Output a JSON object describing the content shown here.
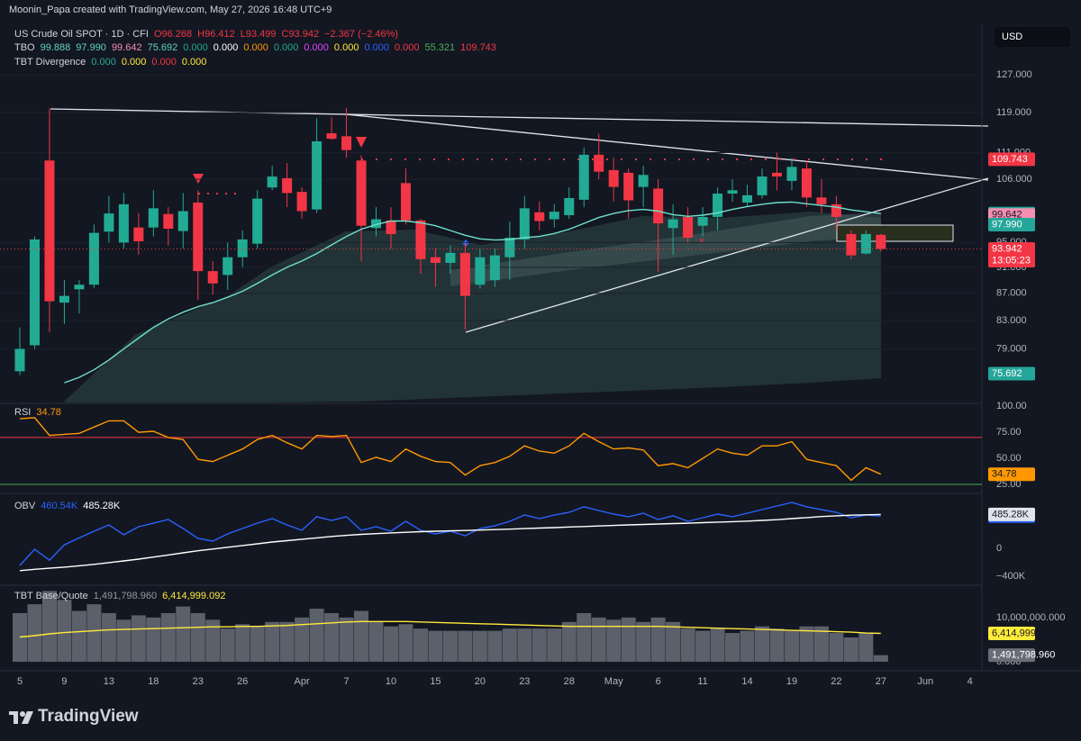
{
  "credit": "Moonin_Papa created with TradingView.com, May 27, 2026 16:48 UTC+9",
  "currency": "USD",
  "brand": "TradingView",
  "chart_data": [
    {
      "type": "candlestick",
      "title": "US Crude Oil SPOT · 1D · CFI",
      "log": true,
      "grid": true,
      "legend_values": [
        "O96.268",
        "H96.412",
        "L93.499",
        "C93.942",
        "−2.367 (−2.46%)"
      ],
      "indicators": [
        {
          "name": "TBO",
          "values": [
            {
              "text": "99.888",
              "color": "#5fd3c2"
            },
            {
              "text": "97.990",
              "color": "#5fd3c2"
            },
            {
              "text": "99.642",
              "color": "#f48fb1"
            },
            {
              "text": "75.692",
              "color": "#5fd3c2"
            },
            {
              "text": "0.000",
              "color": "#22ab94"
            },
            {
              "text": "0.000",
              "color": "#ffffff"
            },
            {
              "text": "0.000",
              "color": "#ff9800"
            },
            {
              "text": "0.000",
              "color": "#22ab94"
            },
            {
              "text": "0.000",
              "color": "#e040fb"
            },
            {
              "text": "0.000",
              "color": "#ffeb3b"
            },
            {
              "text": "0.000",
              "color": "#2962ff"
            },
            {
              "text": "0.000",
              "color": "#f23645"
            },
            {
              "text": "55.321",
              "color": "#4caf50"
            },
            {
              "text": "109.743",
              "color": "#f23645"
            }
          ]
        },
        {
          "name": "TBT Divergence",
          "values": [
            {
              "text": "0.000",
              "color": "#22ab94"
            },
            {
              "text": "0.000",
              "color": "#ffeb3b"
            },
            {
              "text": "0.000",
              "color": "#f23645"
            },
            {
              "text": "0.000",
              "color": "#ffeb3b"
            }
          ]
        }
      ],
      "categories": [
        "5",
        null,
        null,
        "9",
        null,
        null,
        "13",
        null,
        null,
        "18",
        null,
        null,
        "23",
        null,
        null,
        "26",
        null,
        null,
        null,
        "Apr",
        null,
        null,
        "7",
        null,
        null,
        "10",
        null,
        null,
        "15",
        null,
        null,
        "20",
        null,
        null,
        "23",
        null,
        null,
        "28",
        null,
        null,
        "May",
        null,
        null,
        "6",
        null,
        null,
        "11",
        null,
        null,
        "14",
        null,
        null,
        "19",
        null,
        null,
        "22",
        null,
        null,
        "27",
        null,
        null,
        "Jun",
        null,
        null,
        "4"
      ],
      "open": [
        76,
        79.5,
        109.5,
        85.6,
        87.6,
        88.3,
        96.8,
        95,
        97.5,
        97.5,
        99.8,
        96.9,
        101.8,
        90.4,
        89.8,
        92.6,
        94.8,
        104.5,
        106.2,
        103.7,
        100.6,
        114.8,
        114.2,
        109.5,
        97.4,
        98.7,
        105.3,
        98.7,
        92.6,
        91.7,
        93.3,
        88.3,
        89.0,
        92.6,
        95.5,
        100.1,
        98.9,
        99.6,
        102.3,
        110.6,
        107.7,
        107.2,
        104.6,
        104.3,
        97.4,
        99.3,
        97.8,
        99.3,
        103.4,
        101.8,
        103.1,
        107.2,
        105.7,
        108,
        102.7,
        101.5,
        96.4,
        93.2,
        96.268,
        null,
        null,
        null,
        null,
        null,
        null
      ],
      "high": [
        82,
        96,
        119.8,
        89,
        89,
        98,
        103,
        103.5,
        100,
        104,
        101,
        103.5,
        104,
        92,
        95,
        97,
        104,
        108.5,
        109,
        104.5,
        117.8,
        118,
        120,
        110.5,
        101,
        101,
        108,
        99,
        94,
        94.5,
        95,
        94,
        94,
        98.5,
        103,
        102,
        101.5,
        104.5,
        112,
        114.7,
        110,
        108,
        108.5,
        106,
        101.5,
        101,
        101,
        104.5,
        106,
        105,
        108,
        111,
        110,
        109.5,
        106,
        103,
        97,
        97,
        96.412,
        null,
        null,
        null,
        null,
        null,
        null
      ],
      "low": [
        75.5,
        79,
        81.3,
        82.5,
        84,
        87.8,
        95,
        94,
        93,
        96,
        94.5,
        94,
        86,
        86.8,
        87.5,
        91,
        94,
        104,
        101,
        99,
        100,
        113.5,
        110,
        92,
        96,
        94,
        98,
        90,
        88,
        90,
        81.7,
        87.7,
        88,
        89,
        94,
        97,
        97.5,
        99,
        101,
        106,
        102,
        99,
        101,
        90.3,
        93,
        95,
        96,
        97,
        102,
        101,
        102.5,
        104,
        104,
        101,
        100,
        97,
        92.3,
        93,
        93.499,
        null,
        null,
        null,
        null,
        null,
        null
      ],
      "close": [
        79,
        95.5,
        85.8,
        86.6,
        88.3,
        96.6,
        99.9,
        101.5,
        95.2,
        100.8,
        97.3,
        100.3,
        90.4,
        88.5,
        92.6,
        95.5,
        102.5,
        106.5,
        103.5,
        100.3,
        113.2,
        113.7,
        111.5,
        97.8,
        98.9,
        96.4,
        98.7,
        92.3,
        91.7,
        93.3,
        86.6,
        92.6,
        92.9,
        95.8,
        100.8,
        98.6,
        100.2,
        102.6,
        110.6,
        107.4,
        104.6,
        102.2,
        106.8,
        98.2,
        98.9,
        95.8,
        99.3,
        103.4,
        104.0,
        103.1,
        106.5,
        106.5,
        108.3,
        102.7,
        101.5,
        99.3,
        92.9,
        96.4,
        93.942,
        null,
        null,
        null,
        null,
        null,
        null
      ],
      "up_color": "#22ab94",
      "down_color": "#f23645",
      "series": [
        {
          "color": "#6fe0cc",
          "values": [
            null,
            null,
            null,
            74.5,
            75.2,
            76.2,
            77.5,
            79,
            80.5,
            82,
            83.2,
            84.2,
            85,
            85.6,
            86.4,
            87.3,
            88.5,
            89.8,
            91,
            92,
            93.2,
            94.6,
            96,
            97.2,
            98,
            98.6,
            98.6,
            98.3,
            97.8,
            97,
            96.2,
            95.6,
            95.4,
            95.5,
            95.8,
            96,
            96.5,
            97.2,
            98.2,
            99.2,
            99.9,
            100.4,
            100.6,
            100.3,
            99.7,
            99.4,
            99.6,
            100,
            100.6,
            101.1,
            101.5,
            101.8,
            101.9,
            101.6,
            101.3,
            101.0,
            100.5,
            100.2,
            99.888,
            null,
            null,
            null,
            null,
            null,
            null
          ]
        }
      ],
      "ylim": [
        72,
        138
      ],
      "yticks": [
        {
          "value": 127,
          "label": "127.000"
        },
        {
          "value": 119,
          "label": "119.000"
        },
        {
          "value": 111,
          "label": "111.000"
        },
        {
          "value": 106,
          "label": "106.000"
        },
        {
          "value": 95,
          "label": "95.000"
        },
        {
          "value": 91,
          "label": "91.000"
        },
        {
          "value": 87,
          "label": "87.000"
        },
        {
          "value": 83,
          "label": "83.000"
        },
        {
          "value": 79,
          "label": "79.000"
        }
      ],
      "price_tags": [
        {
          "value": 109.743,
          "label": "109.743",
          "color": "#f23645",
          "text_color": "#ffffff"
        },
        {
          "value": 99.888,
          "label": "99.888",
          "color": "#26a69a",
          "text_color": "#ffffff"
        },
        {
          "value": 99.642,
          "label": "99.642",
          "color": "#f48fb1",
          "text_color": "#131722"
        },
        {
          "value": 97.99,
          "label": "97.990",
          "color": "#26a69a",
          "text_color": "#ffffff"
        },
        {
          "value": 93.942,
          "label": "93.942",
          "color": "#f23645",
          "text_color": "#ffffff"
        },
        {
          "value": 75.692,
          "label": "75.692",
          "color": "#26a69a",
          "text_color": "#ffffff"
        }
      ],
      "countdown": "13:05:23"
    },
    {
      "type": "line",
      "ylim": [
        19,
        101
      ],
      "yticks": [
        {
          "value": 100,
          "label": "100.00"
        },
        {
          "value": 75,
          "label": "75.00"
        },
        {
          "value": 50,
          "label": "50.00"
        },
        {
          "value": 25,
          "label": "25.00"
        }
      ],
      "bands": [
        {
          "value": 70,
          "color": "#f23645"
        },
        {
          "value": 25,
          "color": "#4caf50"
        }
      ],
      "series": [
        {
          "name": "RSI",
          "color": "#ff9800",
          "last_label": "34.78",
          "tag_text_color": "#131722",
          "values": [
            88,
            89,
            72,
            73,
            74,
            80,
            86,
            86,
            75,
            76,
            70,
            68,
            49,
            47,
            53,
            59,
            68,
            72,
            65,
            59,
            72,
            71,
            72,
            46,
            51,
            47,
            59,
            52,
            47,
            46,
            34,
            43,
            46,
            52,
            62,
            57,
            55,
            62,
            74,
            66,
            59,
            60,
            58,
            43,
            45,
            41,
            50,
            59,
            55,
            53,
            62,
            62,
            66,
            49,
            46,
            43,
            29,
            41,
            34.78
          ]
        }
      ]
    },
    {
      "type": "line",
      "ylim": [
        -503000,
        735000
      ],
      "yticks": [
        {
          "value": -400000,
          "label": "−400K"
        },
        0
      ],
      "series": [
        {
          "name": "OBV",
          "color": "#2962ff",
          "last_label": "460.54K",
          "tag_text_color": "#ffffff",
          "values": [
            -245000,
            -13000,
            -170000,
            50000,
            150000,
            245000,
            335000,
            195000,
            310000,
            360000,
            413000,
            284000,
            142000,
            103000,
            206000,
            284000,
            361000,
            426000,
            335000,
            258000,
            452000,
            400000,
            452000,
            258000,
            310000,
            245000,
            387000,
            258000,
            206000,
            245000,
            181000,
            284000,
            323000,
            387000,
            477000,
            426000,
            477000,
            516000,
            594000,
            542000,
            490000,
            452000,
            503000,
            413000,
            465000,
            387000,
            439000,
            490000,
            452000,
            503000,
            555000,
            606000,
            658000,
            594000,
            555000,
            516000,
            439000,
            477000,
            460540
          ]
        },
        {
          "color": "#ffffff",
          "last_label": "485.28K",
          "tag_text_color": "#131722",
          "values": [
            -320000,
            -300000,
            -285000,
            -270000,
            -250000,
            -230000,
            -205000,
            -180000,
            -155000,
            -125000,
            -95000,
            -65000,
            -35000,
            -10000,
            15000,
            40000,
            65000,
            90000,
            110000,
            130000,
            150000,
            170000,
            185000,
            200000,
            210000,
            220000,
            230000,
            238000,
            245000,
            250000,
            255000,
            262000,
            268000,
            275000,
            282000,
            290000,
            297000,
            305000,
            312000,
            320000,
            328000,
            335000,
            342000,
            348000,
            355000,
            360000,
            367000,
            375000,
            382000,
            390000,
            400000,
            410000,
            425000,
            440000,
            455000,
            465000,
            475000,
            480000,
            485280
          ]
        }
      ]
    },
    {
      "type": "bar",
      "ylim": [
        -1430000,
        16900000
      ],
      "yticks": [
        {
          "value": 0,
          "label": "0.000"
        },
        {
          "value": 10000000,
          "label": "10,000,000.000"
        }
      ],
      "series": [
        {
          "type": "bar",
          "name": "TBT Base/Quote",
          "color": "#6a6d78",
          "last_label": "1,491,798.960",
          "tag_text_color": "#ffffff",
          "values": [
            11000000,
            13000000,
            16000000,
            14000000,
            11500000,
            13000000,
            11000000,
            9500000,
            10500000,
            10000000,
            11000000,
            12500000,
            11000000,
            9500000,
            7500000,
            8500000,
            8000000,
            9000000,
            9000000,
            10000000,
            12000000,
            11000000,
            10000000,
            11500000,
            9000000,
            8000000,
            8500000,
            7500000,
            7000000,
            7000000,
            7000000,
            7000000,
            7000000,
            7500000,
            7500000,
            7500000,
            7500000,
            9000000,
            11000000,
            10000000,
            9500000,
            10000000,
            9000000,
            10000000,
            9000000,
            7500000,
            7000000,
            7500000,
            6500000,
            7000000,
            8000000,
            7500000,
            7000000,
            8000000,
            8000000,
            6500000,
            5500000,
            6500000,
            1491798.96
          ]
        },
        {
          "type": "line",
          "color": "#ffeb3b",
          "last_label": "6,414,999.092",
          "tag_text_color": "#131722",
          "values": [
            5600000,
            5900000,
            6300000,
            6600000,
            6800000,
            7000000,
            7200000,
            7300000,
            7400000,
            7500000,
            7600000,
            7700000,
            7800000,
            7900000,
            7900000,
            8000000,
            8000000,
            8100000,
            8200000,
            8400000,
            8600000,
            8800000,
            9000000,
            9100000,
            9100000,
            9100000,
            9100000,
            9000000,
            8900000,
            8800000,
            8700000,
            8600000,
            8500000,
            8400000,
            8300000,
            8200000,
            8100000,
            8000000,
            8000000,
            8000000,
            8000000,
            8000000,
            8000000,
            8000000,
            7900000,
            7800000,
            7700000,
            7600000,
            7500000,
            7400000,
            7300000,
            7200000,
            7100000,
            7000000,
            6900000,
            6800000,
            6700000,
            6500000,
            6414999.092
          ]
        }
      ]
    }
  ]
}
